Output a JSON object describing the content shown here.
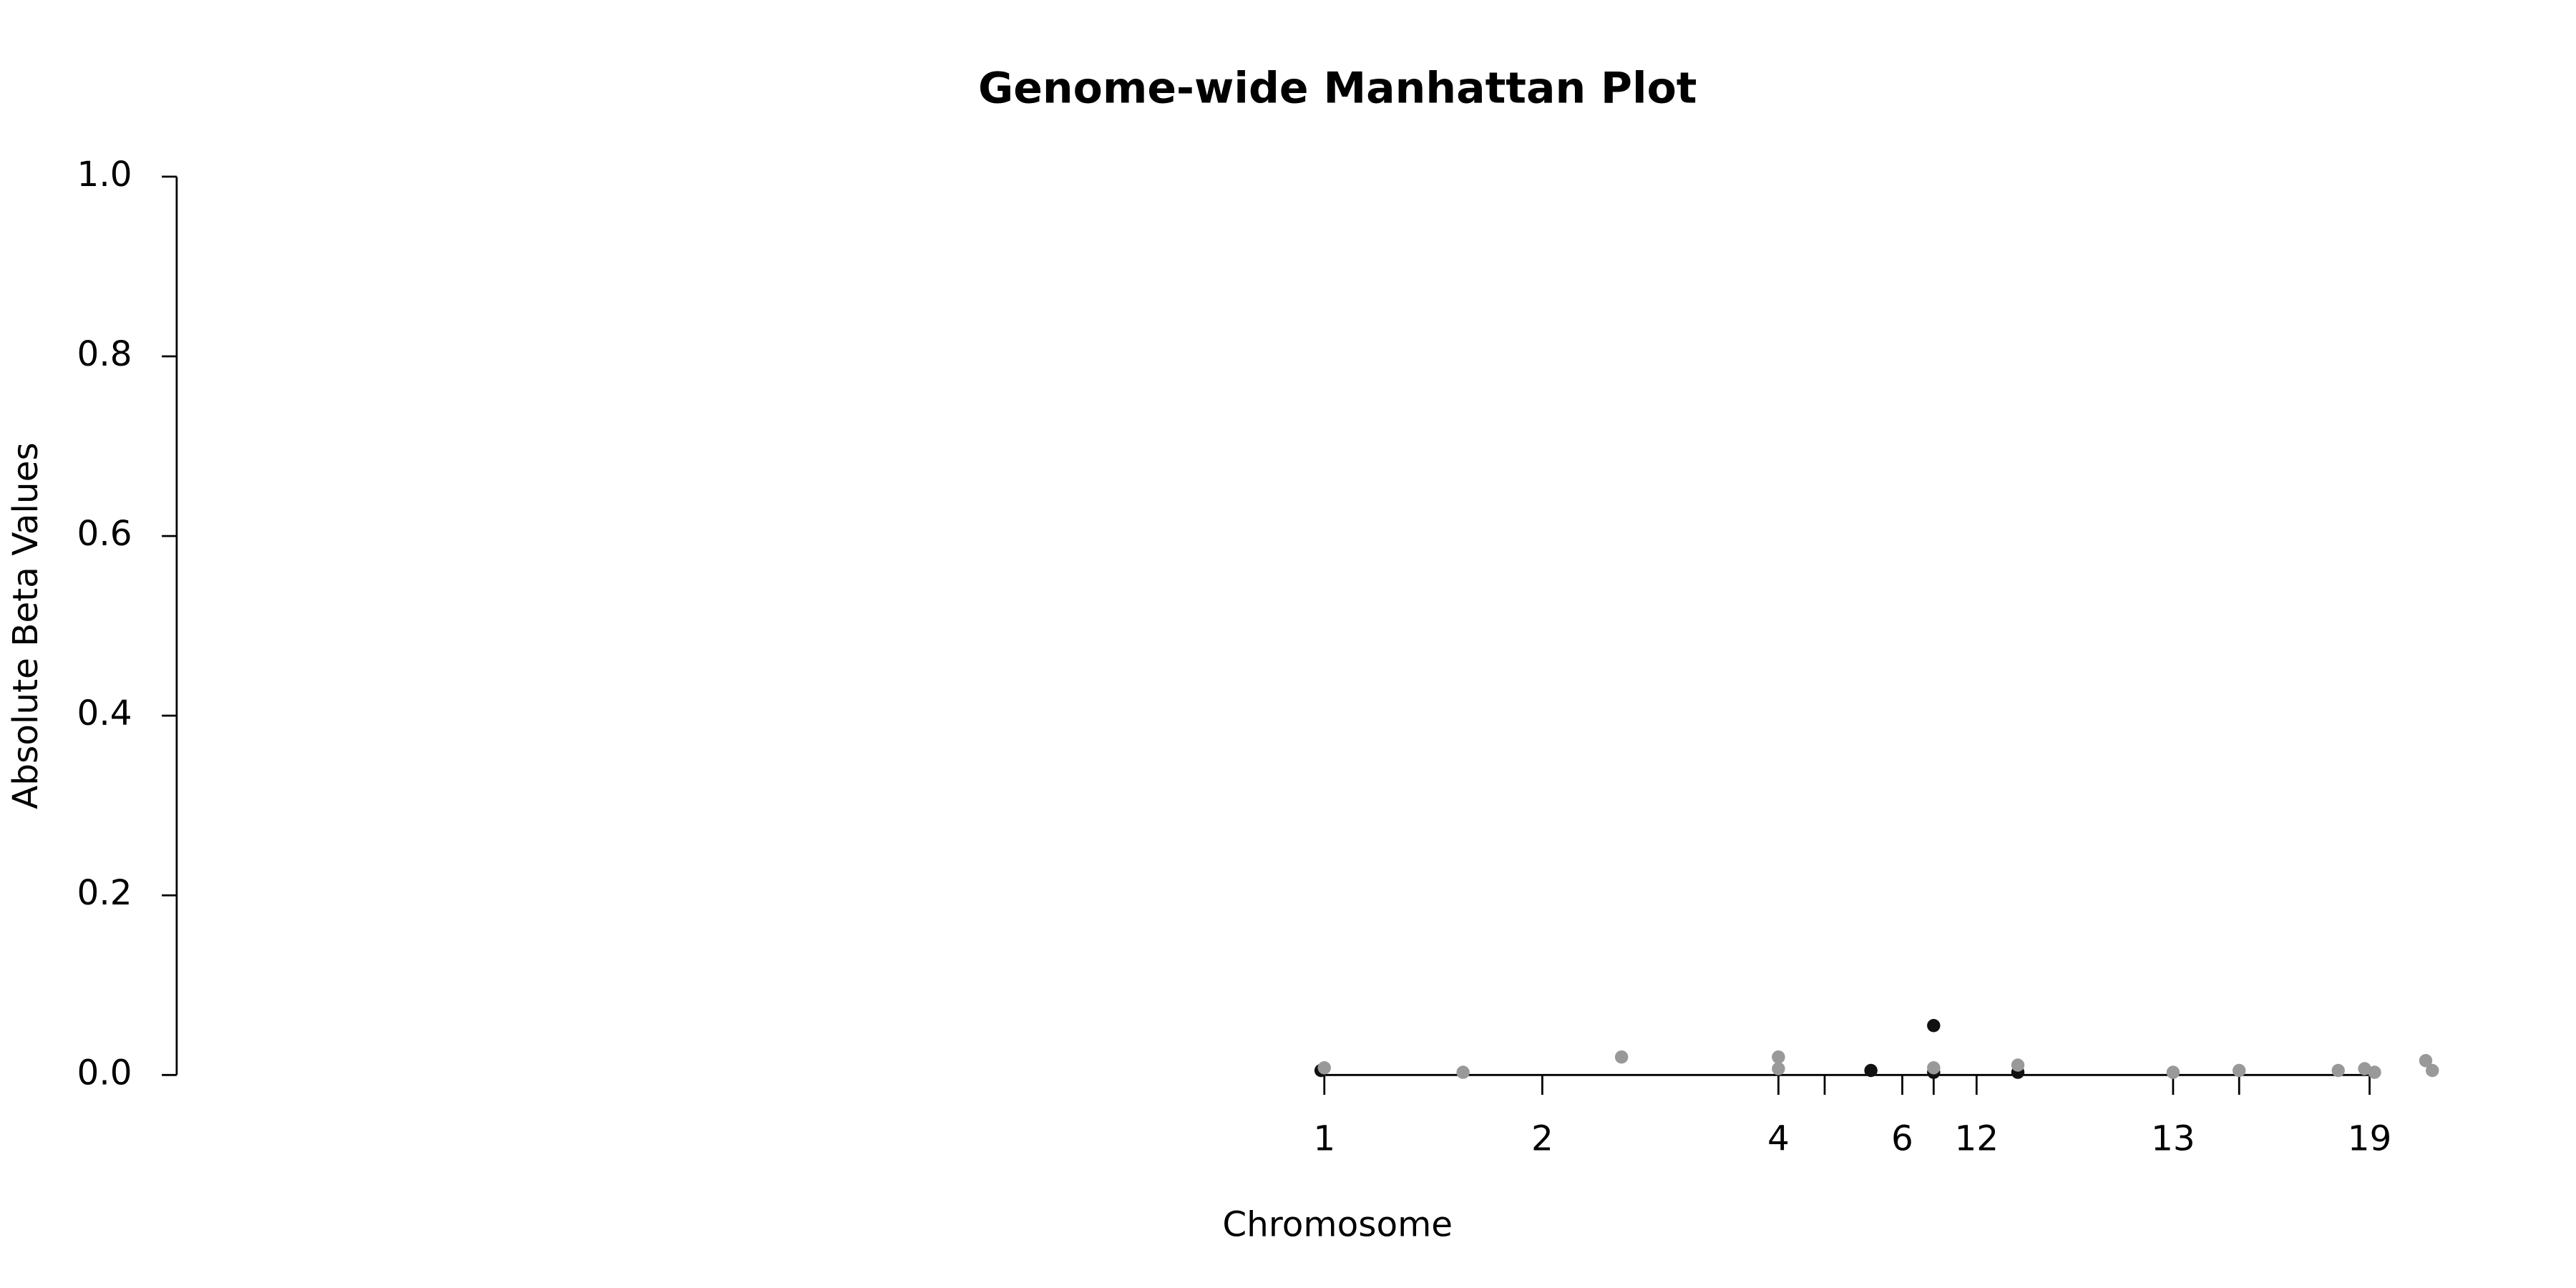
{
  "chart_data": {
    "type": "scatter",
    "title": "Genome-wide Manhattan Plot",
    "x_label": "Chromosome",
    "y_label": "Absolute Beta Values",
    "xlim": [
      0,
      1413
    ],
    "ylim": [
      0,
      1
    ],
    "xticks": [
      {
        "value": 695,
        "label": "1"
      },
      {
        "value": 827,
        "label": "2"
      },
      {
        "value": 970,
        "label": "4"
      },
      {
        "value": 998,
        "label": null
      },
      {
        "value": 1045,
        "label": "6"
      },
      {
        "value": 1064,
        "label": null
      },
      {
        "value": 1090,
        "label": "12"
      },
      {
        "value": 1209,
        "label": "13"
      },
      {
        "value": 1249,
        "label": null
      },
      {
        "value": 1328,
        "label": "19"
      }
    ],
    "yticks": [
      {
        "value": 0,
        "label": "0.0"
      },
      {
        "value": 0.2,
        "label": "0.2"
      },
      {
        "value": 0.4,
        "label": "0.4"
      },
      {
        "value": 0.6,
        "label": "0.6"
      },
      {
        "value": 0.8,
        "label": "0.8"
      },
      {
        "value": 1,
        "label": "1.0"
      }
    ],
    "series": [
      {
        "color": "#111111",
        "x": [
          693,
          1026,
          1064,
          1064,
          1115
        ],
        "values": [
          0.005,
          0.005,
          0.055,
          0.003,
          0.003
        ]
      },
      {
        "color": "#999999",
        "x": [
          695,
          779,
          875,
          970,
          970,
          1064,
          1115,
          1209,
          1249,
          1309,
          1325,
          1331,
          1362,
          1366
        ],
        "values": [
          0.008,
          0.003,
          0.02,
          0.02,
          0.007,
          0.008,
          0.011,
          0.003,
          0.005,
          0.005,
          0.007,
          0.003,
          0.016,
          0.005
        ]
      }
    ]
  }
}
